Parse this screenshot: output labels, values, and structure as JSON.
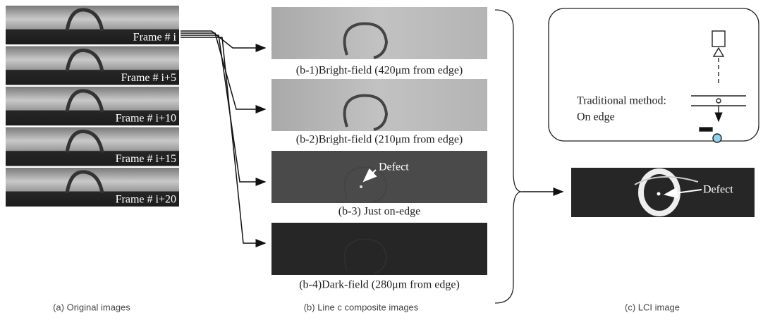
{
  "panel_a": {
    "frames": [
      "Frame # i",
      "Frame # i+5",
      "Frame # i+10",
      "Frame # i+15",
      "Frame # i+20"
    ],
    "caption": "(a) Original images"
  },
  "panel_b": {
    "images": [
      "(b-1)Bright-field (420μm from edge)",
      "(b-2)Bright-field (210μm from edge)",
      "(b-3) Just on-edge",
      "(b-4)Dark-field (280μm from edge)"
    ],
    "defect": "Defect",
    "caption": "(b) Line c composite images"
  },
  "panel_c": {
    "method": [
      "Traditional method:",
      "On edge"
    ],
    "defect": "Defect",
    "caption": "(c) LCI image"
  }
}
